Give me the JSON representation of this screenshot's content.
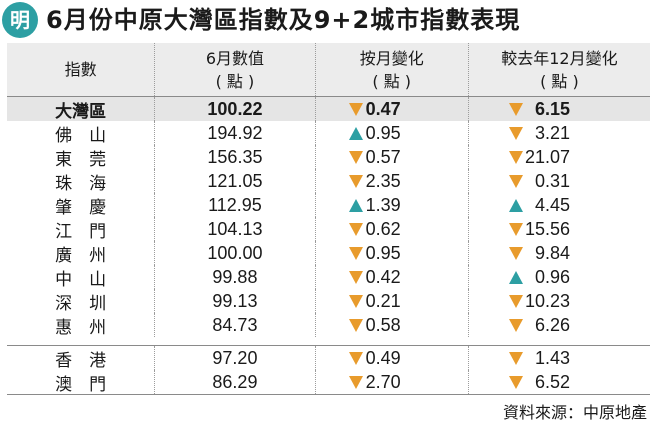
{
  "header": {
    "logo": "明",
    "title": "6月份中原大灣區指數及9+2城市指數表現"
  },
  "columns": [
    {
      "line1": "指數",
      "line2": ""
    },
    {
      "line1": "6月數值",
      "line2": "( 點 )"
    },
    {
      "line1": "按月變化",
      "line2": "( 點 )"
    },
    {
      "line1": "較去年12月變化",
      "line2": "( 點 )"
    }
  ],
  "gba_row": {
    "name": "大灣區",
    "value": "100.22",
    "mom": {
      "dir": "down",
      "val": "0.47"
    },
    "yoy": {
      "dir": "down",
      "val": "6.15"
    }
  },
  "cities": [
    {
      "name": "佛　山",
      "value": "194.92",
      "mom": {
        "dir": "up",
        "val": "0.95"
      },
      "yoy": {
        "dir": "down",
        "val": "3.21"
      }
    },
    {
      "name": "東　莞",
      "value": "156.35",
      "mom": {
        "dir": "down",
        "val": "0.57"
      },
      "yoy": {
        "dir": "down",
        "val": "21.07"
      }
    },
    {
      "name": "珠　海",
      "value": "121.05",
      "mom": {
        "dir": "down",
        "val": "2.35"
      },
      "yoy": {
        "dir": "down",
        "val": "0.31"
      }
    },
    {
      "name": "肇　慶",
      "value": "112.95",
      "mom": {
        "dir": "up",
        "val": "1.39"
      },
      "yoy": {
        "dir": "up",
        "val": "4.45"
      }
    },
    {
      "name": "江　門",
      "value": "104.13",
      "mom": {
        "dir": "down",
        "val": "0.62"
      },
      "yoy": {
        "dir": "down",
        "val": "15.56"
      }
    },
    {
      "name": "廣　州",
      "value": "100.00",
      "mom": {
        "dir": "down",
        "val": "0.95"
      },
      "yoy": {
        "dir": "down",
        "val": "9.84"
      }
    },
    {
      "name": "中　山",
      "value": "99.88",
      "mom": {
        "dir": "down",
        "val": "0.42"
      },
      "yoy": {
        "dir": "up",
        "val": "0.96"
      }
    },
    {
      "name": "深　圳",
      "value": "99.13",
      "mom": {
        "dir": "down",
        "val": "0.21"
      },
      "yoy": {
        "dir": "down",
        "val": "10.23"
      }
    },
    {
      "name": "惠　州",
      "value": "84.73",
      "mom": {
        "dir": "down",
        "val": "0.58"
      },
      "yoy": {
        "dir": "down",
        "val": "6.26"
      }
    }
  ],
  "sar": [
    {
      "name": "香　港",
      "value": "97.20",
      "mom": {
        "dir": "down",
        "val": "0.49"
      },
      "yoy": {
        "dir": "down",
        "val": "1.43"
      }
    },
    {
      "name": "澳　門",
      "value": "86.29",
      "mom": {
        "dir": "down",
        "val": "2.70"
      },
      "yoy": {
        "dir": "down",
        "val": "6.52"
      }
    }
  ],
  "source": "資料來源：中原地產",
  "colors": {
    "down": "#e89b2c",
    "up": "#2d9fa3",
    "logo": "#2d9fa3",
    "header_bg": "#ececec"
  }
}
